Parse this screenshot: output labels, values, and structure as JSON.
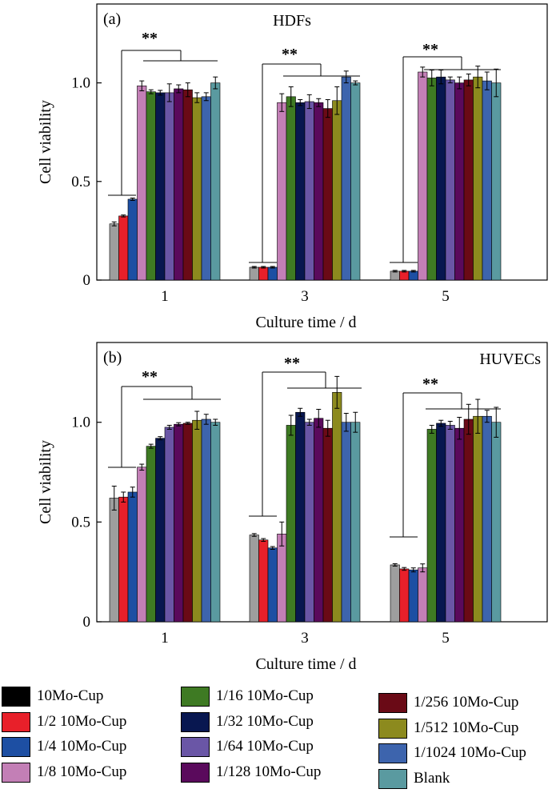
{
  "chart_data": [
    {
      "type": "bar",
      "panel_label": "(a)",
      "panel_title": "HDFs",
      "xlabel": "Culture time / d",
      "ylabel": "Cell viability",
      "ylim": [
        0,
        1.4
      ],
      "yticks": [
        0,
        0.5,
        1.0
      ],
      "ytick_labels": [
        "0",
        "0.5",
        "1.0"
      ],
      "categories": [
        "1",
        "3",
        "5"
      ],
      "significance_label": "**",
      "series": [
        {
          "name": "10Mo-Cup",
          "values": [
            0.285,
            0.065,
            0.045
          ],
          "errors": [
            0.01,
            0.004,
            0.004
          ]
        },
        {
          "name": "1/2 10Mo-Cup",
          "values": [
            0.325,
            0.065,
            0.045
          ],
          "errors": [
            0.005,
            0.004,
            0.004
          ]
        },
        {
          "name": "1/4 10Mo-Cup",
          "values": [
            0.41,
            0.065,
            0.045
          ],
          "errors": [
            0.006,
            0.004,
            0.004
          ]
        },
        {
          "name": "1/8 10Mo-Cup",
          "values": [
            0.985,
            0.9,
            1.055
          ],
          "errors": [
            0.025,
            0.045,
            0.025
          ]
        },
        {
          "name": "1/16 10Mo-Cup",
          "values": [
            0.955,
            0.93,
            1.025
          ],
          "errors": [
            0.01,
            0.05,
            0.04
          ]
        },
        {
          "name": "1/32 10Mo-Cup",
          "values": [
            0.95,
            0.9,
            1.03
          ],
          "errors": [
            0.012,
            0.015,
            0.035
          ]
        },
        {
          "name": "1/64 10Mo-Cup",
          "values": [
            0.95,
            0.905,
            1.015
          ],
          "errors": [
            0.045,
            0.035,
            0.015
          ]
        },
        {
          "name": "1/128 10Mo-Cup",
          "values": [
            0.97,
            0.9,
            1.0
          ],
          "errors": [
            0.02,
            0.02,
            0.03
          ]
        },
        {
          "name": "1/256 10Mo-Cup",
          "values": [
            0.965,
            0.87,
            1.015
          ],
          "errors": [
            0.035,
            0.045,
            0.03
          ]
        },
        {
          "name": "1/512 10Mo-Cup",
          "values": [
            0.925,
            0.91,
            1.03
          ],
          "errors": [
            0.025,
            0.07,
            0.055
          ]
        },
        {
          "name": "1/1024 10Mo-Cup",
          "values": [
            0.93,
            1.03,
            1.01
          ],
          "errors": [
            0.02,
            0.03,
            0.045
          ]
        },
        {
          "name": "Blank",
          "values": [
            1.0,
            1.0,
            1.0
          ],
          "errors": [
            0.03,
            0.01,
            0.07
          ]
        }
      ]
    },
    {
      "type": "bar",
      "panel_label": "(b)",
      "panel_title": "HUVECs",
      "xlabel": "Culture time / d",
      "ylabel": "Cell viability",
      "ylim": [
        0,
        1.4
      ],
      "yticks": [
        0,
        0.5,
        1.0
      ],
      "ytick_labels": [
        "0",
        "0.5",
        "1.0"
      ],
      "categories": [
        "1",
        "3",
        "5"
      ],
      "significance_label": "**",
      "series": [
        {
          "name": "10Mo-Cup",
          "values": [
            0.62,
            0.435,
            0.285
          ],
          "errors": [
            0.06,
            0.007,
            0.006
          ]
        },
        {
          "name": "1/2 10Mo-Cup",
          "values": [
            0.625,
            0.41,
            0.265
          ],
          "errors": [
            0.025,
            0.007,
            0.007
          ]
        },
        {
          "name": "1/4 10Mo-Cup",
          "values": [
            0.65,
            0.37,
            0.26
          ],
          "errors": [
            0.025,
            0.007,
            0.01
          ]
        },
        {
          "name": "1/8 10Mo-Cup",
          "values": [
            0.775,
            0.44,
            0.27
          ],
          "errors": [
            0.015,
            0.06,
            0.02
          ]
        },
        {
          "name": "1/16 10Mo-Cup",
          "values": [
            0.88,
            0.985,
            0.965
          ],
          "errors": [
            0.01,
            0.05,
            0.02
          ]
        },
        {
          "name": "1/32 10Mo-Cup",
          "values": [
            0.92,
            1.05,
            0.995
          ],
          "errors": [
            0.008,
            0.02,
            0.015
          ]
        },
        {
          "name": "1/64 10Mo-Cup",
          "values": [
            0.975,
            1.0,
            0.985
          ],
          "errors": [
            0.01,
            0.015,
            0.02
          ]
        },
        {
          "name": "1/128 10Mo-Cup",
          "values": [
            0.99,
            1.02,
            0.97
          ],
          "errors": [
            0.008,
            0.045,
            0.055
          ]
        },
        {
          "name": "1/256 10Mo-Cup",
          "values": [
            0.995,
            0.97,
            1.015
          ],
          "errors": [
            0.005,
            0.04,
            0.075
          ]
        },
        {
          "name": "1/512 10Mo-Cup",
          "values": [
            1.01,
            1.15,
            1.03
          ],
          "errors": [
            0.045,
            0.08,
            0.085
          ]
        },
        {
          "name": "1/1024 10Mo-Cup",
          "values": [
            1.015,
            1.0,
            1.03
          ],
          "errors": [
            0.025,
            0.045,
            0.03
          ]
        },
        {
          "name": "Blank",
          "values": [
            1.0,
            1.0,
            1.0
          ],
          "errors": [
            0.015,
            0.05,
            0.075
          ]
        }
      ]
    }
  ],
  "legend": [
    {
      "label": "10Mo-Cup",
      "color": "#9e9e9e"
    },
    {
      "label": "1/2 10Mo-Cup",
      "color": "#e8202a"
    },
    {
      "label": "1/4 10Mo-Cup",
      "color": "#1d4fa3"
    },
    {
      "label": "1/8 10Mo-Cup",
      "color": "#c37fb6"
    },
    {
      "label": "1/16 10Mo-Cup",
      "color": "#3e7a23"
    },
    {
      "label": "1/32 10Mo-Cup",
      "color": "#081750"
    },
    {
      "label": "1/64 10Mo-Cup",
      "color": "#6a56a6"
    },
    {
      "label": "1/128 10Mo-Cup",
      "color": "#5a0a5c"
    },
    {
      "label": "1/256 10Mo-Cup",
      "color": "#6a0a16"
    },
    {
      "label": "1/512 10Mo-Cup",
      "color": "#8c8a1e"
    },
    {
      "label": "1/1024 10Mo-Cup",
      "color": "#3d64ad"
    },
    {
      "label": "Blank",
      "color": "#5a9aa0"
    }
  ],
  "legend_header_swatch_color": "#000000"
}
